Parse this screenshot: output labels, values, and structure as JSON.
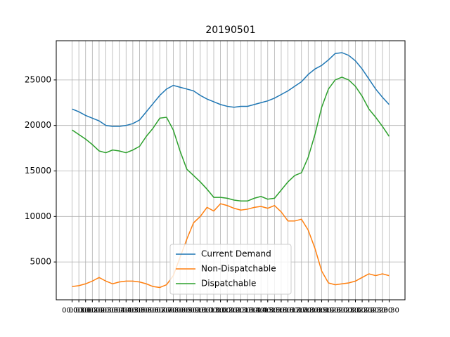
{
  "chart_data": {
    "type": "line",
    "title": "20190501",
    "categories": [
      "00:00",
      "00:30",
      "01:00",
      "01:30",
      "02:00",
      "02:30",
      "03:00",
      "03:30",
      "04:00",
      "04:30",
      "05:00",
      "05:30",
      "06:00",
      "06:30",
      "07:00",
      "07:30",
      "08:00",
      "08:30",
      "09:00",
      "09:30",
      "10:00",
      "10:30",
      "11:00",
      "11:30",
      "12:00",
      "12:30",
      "13:00",
      "13:30",
      "14:00",
      "14:30",
      "15:00",
      "15:30",
      "16:00",
      "16:30",
      "17:00",
      "17:30",
      "18:00",
      "18:30",
      "19:00",
      "19:30",
      "20:00",
      "20:30",
      "21:00",
      "21:30",
      "22:00",
      "22:30",
      "23:00",
      "23:30"
    ],
    "series": [
      {
        "name": "Current Demand",
        "color": "#1f77b4",
        "values": [
          21800,
          21500,
          21100,
          20800,
          20500,
          20000,
          19900,
          19900,
          20000,
          20200,
          20600,
          21500,
          22400,
          23300,
          24000,
          24400,
          24200,
          24000,
          23800,
          23300,
          22900,
          22600,
          22300,
          22100,
          22000,
          22100,
          22100,
          22300,
          22500,
          22700,
          23000,
          23400,
          23800,
          24300,
          24800,
          25600,
          26200,
          26600,
          27200,
          27900,
          28000,
          27700,
          27100,
          26200,
          25100,
          24000,
          23100,
          22300
        ]
      },
      {
        "name": "Non-Dispatchable",
        "color": "#ff7f0e",
        "values": [
          2300,
          2400,
          2600,
          2900,
          3300,
          2900,
          2600,
          2800,
          2900,
          2900,
          2800,
          2600,
          2300,
          2200,
          2500,
          3500,
          5500,
          7500,
          9300,
          10000,
          11000,
          10600,
          11400,
          11200,
          10900,
          10700,
          10800,
          11000,
          11100,
          10900,
          11200,
          10500,
          9500,
          9500,
          9700,
          8500,
          6500,
          4000,
          2700,
          2500,
          2600,
          2700,
          2900,
          3300,
          3700,
          3500,
          3700,
          3500
        ]
      },
      {
        "name": "Dispatchable",
        "color": "#2ca02c",
        "values": [
          19500,
          19000,
          18500,
          17900,
          17200,
          17000,
          17300,
          17200,
          17000,
          17300,
          17700,
          18800,
          19700,
          20800,
          20900,
          19500,
          17200,
          15200,
          14500,
          13800,
          13000,
          12100,
          12100,
          12000,
          11800,
          11700,
          11700,
          12000,
          12200,
          11900,
          12000,
          12900,
          13800,
          14500,
          14800,
          16500,
          19000,
          22000,
          24000,
          25000,
          25300,
          25000,
          24300,
          23200,
          21800,
          20900,
          19900,
          18800
        ]
      }
    ],
    "ylim": [
      846,
      29308
    ],
    "yticks": [
      5000,
      10000,
      15000,
      20000,
      25000
    ],
    "grid": true,
    "legend": "lower center"
  }
}
